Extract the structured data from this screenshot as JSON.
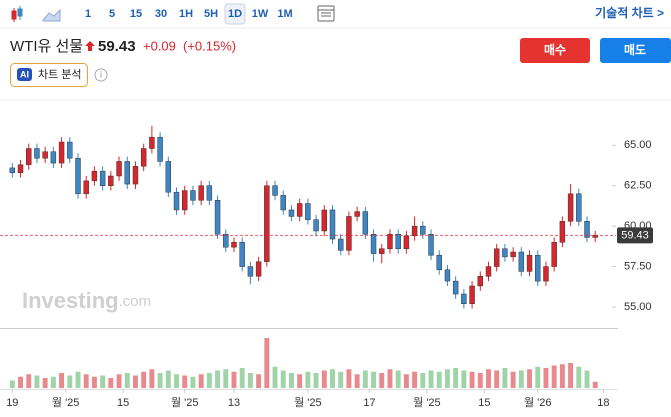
{
  "toolbar": {
    "intervals": [
      "1",
      "5",
      "15",
      "30",
      "1H",
      "5H",
      "1D",
      "1W",
      "1M"
    ],
    "active": "1D",
    "link": "기술적 차트 >"
  },
  "instrument": {
    "name": "WTI유 선물",
    "price": "59.43",
    "change": "+0.09",
    "change_pct": "(+0.15%)"
  },
  "buttons": {
    "buy": "매수",
    "sell": "매도"
  },
  "ai": {
    "badge": "AI",
    "label": "차트 분석"
  },
  "watermark": {
    "brand": "Investing",
    "suffix": ".com"
  },
  "chart_data": {
    "type": "candlestick",
    "open": [
      63.6,
      63.3,
      63.8,
      64.8,
      64.2,
      64.6,
      63.9,
      65.2,
      64.2,
      62.0,
      62.8,
      63.4,
      62.5,
      63.1,
      64.0,
      62.6,
      63.7,
      64.8,
      65.5,
      64.0,
      62.1,
      61.0,
      62.2,
      61.6,
      62.5,
      61.6,
      59.5,
      58.7,
      59.0,
      57.5,
      56.9,
      57.8,
      62.5,
      61.9,
      61.0,
      60.6,
      61.4,
      60.4,
      59.7,
      61.0,
      59.2,
      58.5,
      60.6,
      60.9,
      59.5,
      58.3,
      58.6,
      59.5,
      58.6,
      59.4,
      60.0,
      59.5,
      58.2,
      57.3,
      56.6,
      55.8,
      55.2,
      56.3,
      56.9,
      57.5,
      58.6,
      58.1,
      58.4,
      57.2,
      58.2,
      56.6,
      57.5,
      59.0,
      60.3,
      62.0,
      60.3,
      59.3
    ],
    "high": [
      63.9,
      64.1,
      65.1,
      65.1,
      64.9,
      64.9,
      65.5,
      65.5,
      64.5,
      63.1,
      63.7,
      63.7,
      63.4,
      64.3,
      64.3,
      64.0,
      65.1,
      66.2,
      65.8,
      64.3,
      62.4,
      62.5,
      62.5,
      62.8,
      62.8,
      61.9,
      59.8,
      59.3,
      59.3,
      57.8,
      58.1,
      62.8,
      62.8,
      62.2,
      61.3,
      61.7,
      61.7,
      60.7,
      61.3,
      61.3,
      59.5,
      60.9,
      61.2,
      61.2,
      59.8,
      58.9,
      59.8,
      59.8,
      59.7,
      60.6,
      60.3,
      59.8,
      58.5,
      57.6,
      56.9,
      56.1,
      56.6,
      57.2,
      57.8,
      58.9,
      58.9,
      58.7,
      58.7,
      58.5,
      58.5,
      57.8,
      59.3,
      60.6,
      62.6,
      62.3,
      60.6,
      59.7
    ],
    "low": [
      63.0,
      63.0,
      63.5,
      63.9,
      63.9,
      63.6,
      63.6,
      63.9,
      61.7,
      61.7,
      62.5,
      62.2,
      62.2,
      62.8,
      62.3,
      62.3,
      63.4,
      64.5,
      63.7,
      61.8,
      60.7,
      60.7,
      61.3,
      61.3,
      61.3,
      59.2,
      58.4,
      58.4,
      57.2,
      56.4,
      56.6,
      57.5,
      61.6,
      60.7,
      60.3,
      60.3,
      60.1,
      59.4,
      59.4,
      58.9,
      58.2,
      58.2,
      60.3,
      59.2,
      57.8,
      57.7,
      58.3,
      58.3,
      58.3,
      59.1,
      59.2,
      57.9,
      57.0,
      56.3,
      55.5,
      54.9,
      54.9,
      56.0,
      56.6,
      57.2,
      57.8,
      57.8,
      56.9,
      56.9,
      56.3,
      56.3,
      57.2,
      58.7,
      60.0,
      60.0,
      59.0,
      59.0
    ],
    "close": [
      63.3,
      63.8,
      64.8,
      64.2,
      64.6,
      63.9,
      65.2,
      64.2,
      62.0,
      62.8,
      63.4,
      62.5,
      63.1,
      64.0,
      62.6,
      63.7,
      64.8,
      65.5,
      64.0,
      62.1,
      61.0,
      62.2,
      61.6,
      62.5,
      61.6,
      59.5,
      58.7,
      59.0,
      57.5,
      56.9,
      57.8,
      62.5,
      61.9,
      61.0,
      60.6,
      61.4,
      60.4,
      59.7,
      61.0,
      59.2,
      58.5,
      60.6,
      60.9,
      59.5,
      58.3,
      58.6,
      59.5,
      58.6,
      59.4,
      60.0,
      59.5,
      58.2,
      57.3,
      56.6,
      55.8,
      55.2,
      56.3,
      56.9,
      57.5,
      58.6,
      58.1,
      58.4,
      57.2,
      58.2,
      56.6,
      57.5,
      59.0,
      60.3,
      62.0,
      60.3,
      59.3,
      59.43
    ],
    "volume": [
      12,
      18,
      22,
      20,
      16,
      18,
      24,
      20,
      26,
      22,
      18,
      20,
      16,
      22,
      24,
      20,
      26,
      30,
      24,
      28,
      22,
      20,
      18,
      22,
      24,
      28,
      30,
      26,
      32,
      24,
      22,
      80,
      34,
      28,
      24,
      22,
      26,
      24,
      28,
      30,
      26,
      30,
      22,
      28,
      26,
      24,
      30,
      28,
      22,
      26,
      24,
      28,
      26,
      30,
      32,
      28,
      26,
      24,
      30,
      28,
      32,
      26,
      28,
      30,
      34,
      32,
      36,
      38,
      40,
      34,
      28,
      10
    ],
    "up_color": "#d7262d",
    "down_color": "#3f86c4",
    "vol_up_color": "#e88a8d",
    "vol_down_color": "#9fd3a8",
    "ylim": [
      53.7,
      67.8
    ],
    "yticks": [
      {
        "value": 55,
        "label": "55.00"
      },
      {
        "value": 57.5,
        "label": "57.50"
      },
      {
        "value": 60,
        "label": "60.00"
      },
      {
        "value": 62.5,
        "label": "62.50"
      },
      {
        "value": 65,
        "label": "65.00"
      }
    ],
    "xlim": [
      -1.5,
      72.8
    ],
    "xticks": [
      {
        "value": 0,
        "label": "19"
      },
      {
        "value": 6.5,
        "label": "월 '25"
      },
      {
        "value": 13.5,
        "label": "15"
      },
      {
        "value": 21,
        "label": "월 '25"
      },
      {
        "value": 27,
        "label": "13"
      },
      {
        "value": 36,
        "label": "월 '25"
      },
      {
        "value": 43.5,
        "label": "17"
      },
      {
        "value": 50.5,
        "label": "월 '25"
      },
      {
        "value": 57.5,
        "label": "15"
      },
      {
        "value": 64,
        "label": "월 '26"
      },
      {
        "value": 72,
        "label": "18"
      }
    ]
  }
}
